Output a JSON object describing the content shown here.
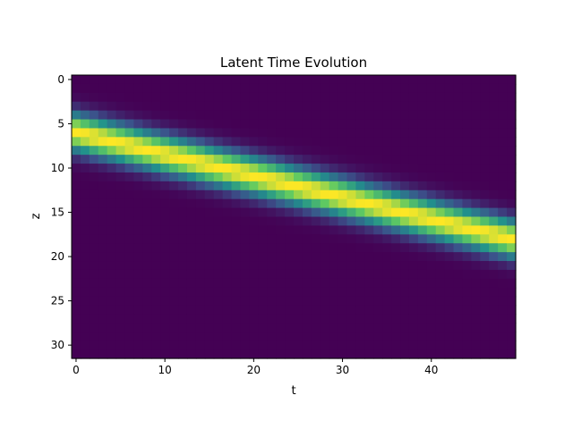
{
  "chart_data": {
    "type": "heatmap",
    "title": "Latent Time Evolution",
    "xlabel": "t",
    "ylabel": "z",
    "x_range": [
      0,
      49
    ],
    "y_range": [
      0,
      31
    ],
    "xticks": [
      0,
      10,
      20,
      30,
      40
    ],
    "yticks": [
      0,
      5,
      10,
      15,
      20,
      25,
      30
    ],
    "grid": false,
    "legend": "none",
    "colormap": "viridis",
    "band": {
      "description_values": "Gaussian ridge: peak value 1.0 at z = center(t), sigma in z units",
      "center_start": 6.0,
      "center_end": 18.0,
      "sigma": 1.5,
      "peak": 1.0
    }
  }
}
